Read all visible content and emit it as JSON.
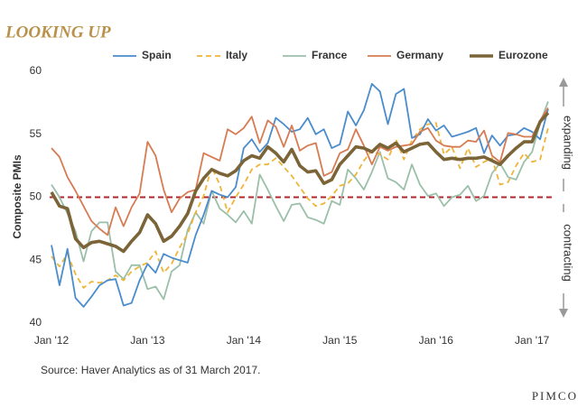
{
  "chart_data": {
    "type": "line",
    "title": "LOOKING UP",
    "y_label": "Composite PMIs",
    "source": "Source: Haver Analytics as of 31 March 2017.",
    "brand": "PIMCO",
    "annotations": [
      "expanding",
      "contracting"
    ],
    "hline": 50,
    "categories": [
      "Jan '12",
      null,
      null,
      null,
      null,
      null,
      null,
      null,
      null,
      null,
      null,
      null,
      "Jan '13",
      null,
      null,
      null,
      null,
      null,
      null,
      null,
      null,
      null,
      null,
      null,
      "Jan '14",
      null,
      null,
      null,
      null,
      null,
      null,
      null,
      null,
      null,
      null,
      null,
      "Jan '15",
      null,
      null,
      null,
      null,
      null,
      null,
      null,
      null,
      null,
      null,
      null,
      "Jan '16",
      null,
      null,
      null,
      null,
      null,
      null,
      null,
      null,
      null,
      null,
      null,
      "Jan '17",
      null,
      null
    ],
    "ylim": [
      40,
      60
    ],
    "yticks": [
      40,
      45,
      50,
      55,
      60
    ],
    "series": [
      {
        "name": "Spain",
        "color": "#4a8ccc",
        "dash": false,
        "width": 1.8,
        "values": [
          46.2,
          43.0,
          45.9,
          42.0,
          41.3,
          42.1,
          43.0,
          43.4,
          43.5,
          41.4,
          41.6,
          43.4,
          44.7,
          44.0,
          45.5,
          45.2,
          45.0,
          44.8,
          47.0,
          48.6,
          50.5,
          50.2,
          50.0,
          50.8,
          53.9,
          54.6,
          53.6,
          54.3,
          56.3,
          55.8,
          55.2,
          55.4,
          56.3,
          55.0,
          55.4,
          53.9,
          54.2,
          56.8,
          55.7,
          56.9,
          59.0,
          58.4,
          55.8,
          58.2,
          58.6,
          54.7,
          55.0,
          56.2,
          55.3,
          55.7,
          54.8,
          55.0,
          55.2,
          55.5,
          53.5,
          54.9,
          54.1,
          54.9,
          55.0,
          55.5,
          55.2,
          54.6,
          57.0
        ]
      },
      {
        "name": "Italy",
        "color": "#efb43a",
        "dash": true,
        "width": 1.8,
        "values": [
          45.3,
          44.5,
          45.5,
          43.9,
          42.8,
          43.3,
          43.2,
          43.4,
          43.8,
          43.4,
          44.1,
          44.5,
          44.8,
          45.7,
          44.0,
          44.7,
          46.0,
          47.1,
          48.8,
          50.1,
          52.4,
          51.0,
          48.8,
          50.0,
          51.0,
          52.2,
          52.6,
          52.6,
          53.1,
          52.4,
          51.7,
          50.8,
          49.9,
          49.3,
          49.5,
          50.1,
          50.9,
          51.1,
          51.8,
          52.9,
          53.7,
          53.4,
          53.0,
          54.6,
          53.0,
          54.5,
          55.4,
          55.8,
          55.9,
          53.4,
          54.0,
          52.3,
          53.9,
          52.4,
          52.8,
          53.1,
          51.0,
          51.2,
          52.5,
          53.5,
          52.8,
          53.0,
          55.5
        ]
      },
      {
        "name": "France",
        "color": "#9bbfa9",
        "dash": false,
        "width": 1.8,
        "values": [
          51.0,
          50.0,
          48.7,
          47.3,
          44.9,
          47.3,
          48.0,
          48.0,
          44.1,
          43.5,
          44.6,
          44.6,
          42.7,
          42.9,
          41.9,
          44.1,
          44.6,
          47.4,
          48.8,
          47.9,
          50.5,
          49.1,
          48.6,
          48.0,
          48.9,
          47.9,
          51.8,
          50.6,
          49.3,
          48.1,
          49.4,
          49.5,
          48.4,
          48.2,
          47.9,
          49.7,
          49.4,
          52.2,
          51.5,
          50.6,
          52.0,
          53.6,
          51.5,
          51.2,
          50.6,
          52.6,
          51.0,
          50.1,
          50.3,
          49.3,
          50.0,
          50.2,
          50.9,
          49.7,
          50.1,
          51.9,
          52.7,
          51.6,
          51.4,
          52.8,
          53.6,
          55.9,
          57.6
        ]
      },
      {
        "name": "Germany",
        "color": "#d77b52",
        "dash": false,
        "width": 1.8,
        "values": [
          53.9,
          53.2,
          51.6,
          50.5,
          49.3,
          48.1,
          47.5,
          47.0,
          49.2,
          47.7,
          49.2,
          50.3,
          54.4,
          53.3,
          50.6,
          48.8,
          49.9,
          50.4,
          50.6,
          53.5,
          53.2,
          52.9,
          55.4,
          55.0,
          55.5,
          56.4,
          54.3,
          56.1,
          55.6,
          54.0,
          55.7,
          53.7,
          54.1,
          54.3,
          51.7,
          52.0,
          53.5,
          53.8,
          55.4,
          54.1,
          52.6,
          54.0,
          53.7,
          54.0,
          54.1,
          54.2,
          55.2,
          55.5,
          54.5,
          54.1,
          54.0,
          54.0,
          54.5,
          54.4,
          55.3,
          53.3,
          52.8,
          55.1,
          55.0,
          54.8,
          54.8,
          56.1,
          57.1
        ]
      },
      {
        "name": "Eurozone",
        "color": "#7b6538",
        "dash": false,
        "width": 3.6,
        "values": [
          50.4,
          49.3,
          49.1,
          46.7,
          46.0,
          46.4,
          46.5,
          46.3,
          46.1,
          45.7,
          46.5,
          47.2,
          48.6,
          47.9,
          46.5,
          46.9,
          47.7,
          48.7,
          50.5,
          51.5,
          52.2,
          51.9,
          51.7,
          52.1,
          52.9,
          53.3,
          53.1,
          54.0,
          53.5,
          52.8,
          53.8,
          52.5,
          52.0,
          52.1,
          51.1,
          51.4,
          52.6,
          53.3,
          54.0,
          53.9,
          53.6,
          54.2,
          53.9,
          54.3,
          53.6,
          53.9,
          54.2,
          54.3,
          53.6,
          53.0,
          53.1,
          53.0,
          53.1,
          53.1,
          53.2,
          52.9,
          52.6,
          53.3,
          53.9,
          54.4,
          54.4,
          56.0,
          56.7
        ]
      }
    ]
  }
}
